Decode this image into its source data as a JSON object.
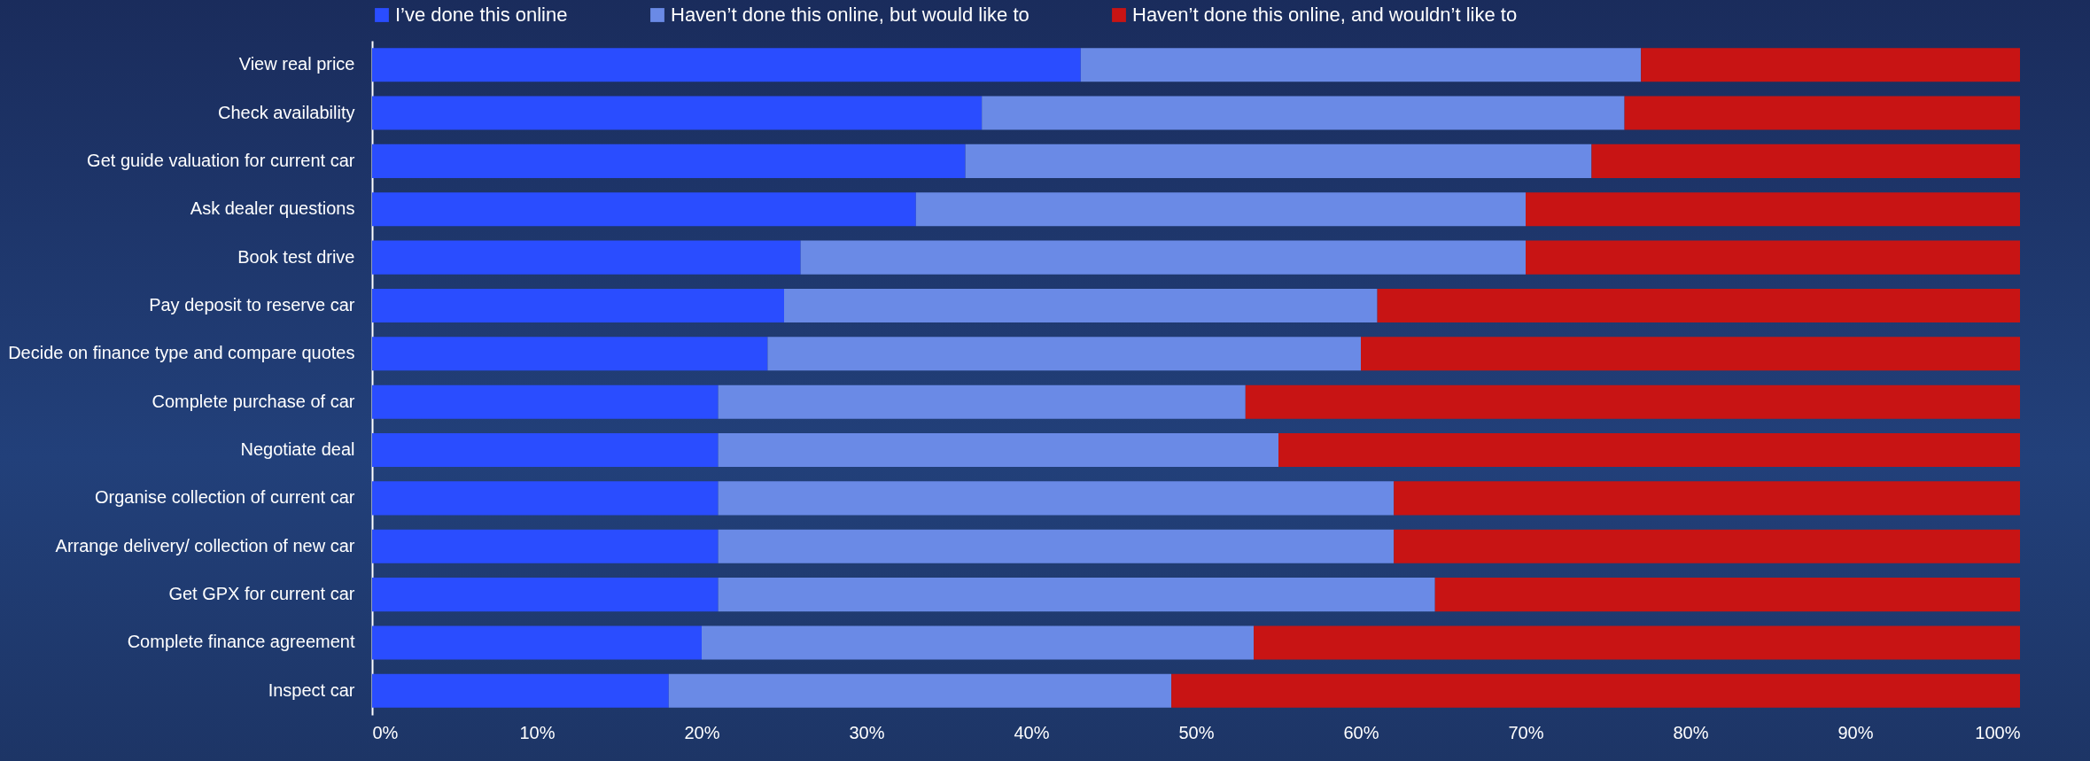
{
  "chart_data": {
    "type": "bar",
    "orientation": "horizontal",
    "stacked": true,
    "legend": "top",
    "grid": false,
    "categories": [
      "View real price",
      "Check availability",
      "Get guide valuation for current car",
      "Ask dealer questions",
      "Book test drive",
      "Pay deposit to reserve car",
      "Decide on finance type and compare quotes",
      "Complete purchase of car",
      "Negotiate deal",
      "Organise collection of current car",
      "Arrange delivery/ collection of new car",
      "Get GPX for current car",
      "Complete finance agreement",
      "Inspect car"
    ],
    "series": [
      {
        "name": "I’ve done this online",
        "color": "#2a4dff",
        "values": [
          43,
          37,
          36,
          33,
          26,
          25,
          24,
          21,
          21,
          21,
          21,
          21,
          20,
          18
        ]
      },
      {
        "name": "Haven’t done this online, but would like to",
        "color": "#6a8ae6",
        "values": [
          34,
          39,
          38,
          37,
          44,
          36,
          36,
          32,
          34,
          41,
          41,
          43.5,
          33.5,
          30.5
        ]
      },
      {
        "name": "Haven’t done this online, and wouldn’t like to",
        "color": "#c81414",
        "values": [
          23,
          24,
          26,
          30,
          30,
          39,
          40,
          47,
          45,
          38,
          38,
          35.5,
          46.5,
          51.5
        ]
      }
    ],
    "xlim": [
      0,
      100
    ],
    "xticks": [
      {
        "value": 0,
        "label": "0%"
      },
      {
        "value": 10,
        "label": "10%"
      },
      {
        "value": 20,
        "label": "20%"
      },
      {
        "value": 30,
        "label": "30%"
      },
      {
        "value": 40,
        "label": "40%"
      },
      {
        "value": 50,
        "label": "50%"
      },
      {
        "value": 60,
        "label": "60%"
      },
      {
        "value": 70,
        "label": "70%"
      },
      {
        "value": 80,
        "label": "80%"
      },
      {
        "value": 90,
        "label": "90%"
      },
      {
        "value": 100,
        "label": "100%"
      }
    ]
  }
}
